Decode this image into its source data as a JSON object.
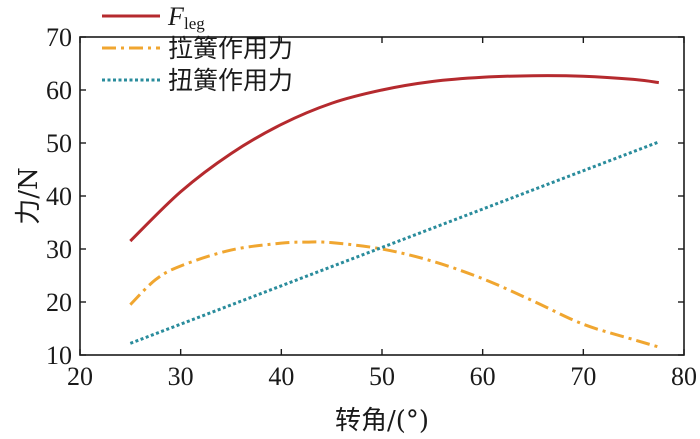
{
  "chart_data": {
    "type": "line",
    "xlabel": "转角/(°)",
    "ylabel": "力/N",
    "xlim": [
      20,
      80
    ],
    "ylim": [
      10,
      70
    ],
    "x_ticks": [
      20,
      30,
      40,
      50,
      60,
      70,
      80
    ],
    "y_ticks": [
      10,
      20,
      30,
      40,
      50,
      60,
      70
    ],
    "grid": false,
    "legend_position": "top-left",
    "series": [
      {
        "name": "F_leg",
        "name_main": "F",
        "name_sub": "leg",
        "color": "#b52a2e",
        "style": "solid",
        "x": [
          25,
          30,
          35,
          40,
          45,
          50,
          55,
          60,
          65,
          70,
          75,
          77.5
        ],
        "y": [
          31.5,
          40.8,
          48.0,
          53.5,
          57.5,
          60.0,
          61.6,
          62.4,
          62.7,
          62.6,
          62.0,
          61.4
        ]
      },
      {
        "name": "拉簧作用力",
        "color": "#f0a630",
        "style": "dashdot",
        "x": [
          25,
          27.5,
          30,
          35,
          40,
          42.5,
          45,
          50,
          55,
          60,
          65,
          70,
          75,
          77.5
        ],
        "y": [
          19.5,
          24.2,
          26.8,
          29.8,
          31.1,
          31.3,
          31.2,
          30.0,
          27.7,
          24.4,
          20.2,
          15.8,
          12.9,
          11.5
        ]
      },
      {
        "name": "扭簧作用力",
        "color": "#2a8c9c",
        "style": "dotted",
        "x": [
          25,
          77.5
        ],
        "y": [
          12.2,
          50.2
        ]
      }
    ]
  }
}
